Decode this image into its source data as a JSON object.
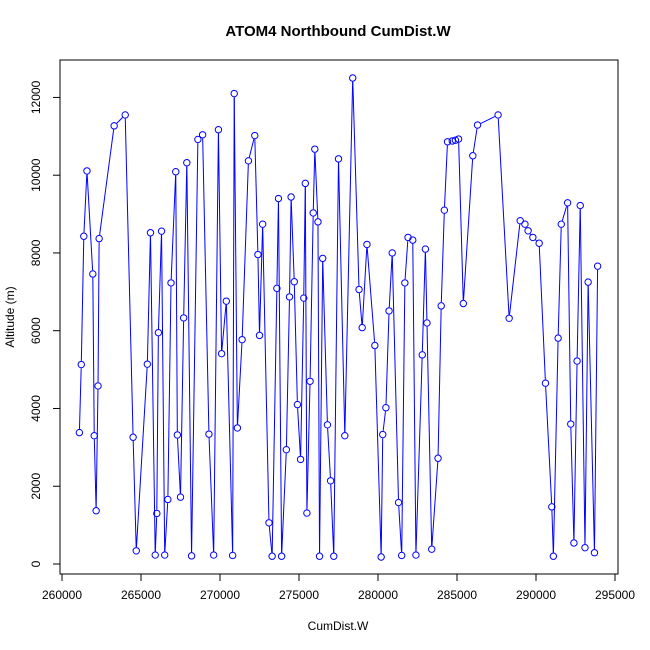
{
  "chart_data": {
    "type": "line",
    "title": "ATOM4 Northbound CumDist.W",
    "xlabel": "CumDist.W",
    "ylabel": "Altitude (m)",
    "xlim": [
      260000,
      295000
    ],
    "ylim": [
      0,
      12500
    ],
    "x_ticks": [
      260000,
      265000,
      270000,
      275000,
      280000,
      285000,
      290000,
      295000
    ],
    "y_ticks": [
      0,
      2000,
      4000,
      6000,
      8000,
      10000,
      12000
    ],
    "x_tick_labels": [
      "260000",
      "265000",
      "270000",
      "275000",
      "280000",
      "285000",
      "290000",
      "295000"
    ],
    "y_tick_labels": [
      "0",
      "2000",
      "4000",
      "6000",
      "8000",
      "10000",
      "12000"
    ],
    "grid": false,
    "style": {
      "color": "#0000ff",
      "marker": "open-circle",
      "line": true
    },
    "series": [
      {
        "x": [
          261100,
          261220,
          261380,
          261580,
          261950,
          262040,
          262160,
          262280,
          262350,
          263300,
          264000,
          264500,
          264700,
          265400,
          265600,
          265900,
          266000,
          266100,
          266300,
          266500,
          266700,
          266900,
          267200,
          267300,
          267500,
          267700,
          267900,
          268200,
          268600,
          268900,
          269300,
          269600,
          269900,
          270100,
          270400,
          270800,
          270900,
          271100,
          271400,
          271800,
          272200,
          272400,
          272500,
          272700,
          273100,
          273300,
          273600,
          273700,
          273900,
          274200,
          274400,
          274500,
          274700,
          274900,
          275100,
          275300,
          275400,
          275500,
          275700,
          275900,
          276000,
          276200,
          276300,
          276500,
          276800,
          277000,
          277200,
          277500,
          277900,
          278400,
          278800,
          279000,
          279300,
          279800,
          280200,
          280300,
          280500,
          280700,
          280900,
          281300,
          281500,
          281700,
          281900,
          282200,
          282400,
          282800,
          283000,
          283100,
          283400,
          283800,
          284000,
          284200,
          284400,
          284700,
          284900,
          285100,
          285400,
          286000,
          286300,
          287600,
          288300,
          289000,
          289300,
          289500,
          289800,
          290200,
          290600,
          291000,
          291100,
          291400,
          291600,
          292000,
          292200,
          292400,
          292600,
          292800,
          293100,
          293300,
          293700,
          293900
        ],
        "y": [
          3380,
          5130,
          8430,
          10110,
          7460,
          3300,
          1370,
          4580,
          8370,
          11270,
          11550,
          3260,
          340,
          5140,
          8520,
          230,
          1300,
          5950,
          8560,
          230,
          1660,
          7230,
          10090,
          3320,
          1720,
          6330,
          10320,
          210,
          10920,
          11040,
          3340,
          230,
          11170,
          5410,
          6760,
          220,
          12100,
          3500,
          5770,
          10370,
          11020,
          7960,
          5880,
          8740,
          1060,
          200,
          7090,
          9400,
          200,
          2940,
          6870,
          9440,
          7260,
          4100,
          2690,
          6840,
          9790,
          1310,
          4700,
          9030,
          10670,
          8800,
          200,
          7860,
          3580,
          2140,
          200,
          10420,
          3300,
          12500,
          7060,
          6080,
          8220,
          5620,
          180,
          3330,
          4020,
          6510,
          8000,
          1580,
          220,
          7230,
          8400,
          8330,
          230,
          5380,
          8100,
          6200,
          380,
          2720,
          6640,
          9100,
          10860,
          10880,
          10900,
          10930,
          6700,
          10500,
          11290,
          11550,
          6320,
          8830,
          8740,
          8570,
          8400,
          8250,
          4650,
          1470,
          200,
          5810,
          8740,
          9290,
          3600,
          540,
          5220,
          9220,
          420,
          7250,
          290,
          7660
        ]
      }
    ]
  }
}
